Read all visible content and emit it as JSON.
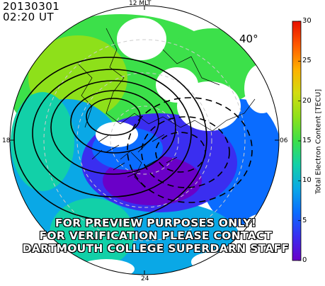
{
  "header": {
    "date": "20130301",
    "time": "02:20 UT"
  },
  "map": {
    "mlt_labels": {
      "top": "12 MLT",
      "left": "18",
      "right": "06",
      "bottom": "24"
    },
    "latitude_label": "40°",
    "watermark": [
      "FOR PREVIEW PURPOSES ONLY!",
      "FOR VERIFICATION PLEASE CONTACT",
      "DARTMOUTH COLLEGE SUPERDARN STAFF"
    ]
  },
  "colorbar": {
    "title": "Total Electron Content [TECU]",
    "min": 0,
    "max": 30,
    "ticks": [
      "0",
      "5",
      "10",
      "15",
      "20",
      "25",
      "30"
    ],
    "stops": [
      "#6a00c8",
      "#3a2ef0",
      "#0a6cff",
      "#0aa8e6",
      "#12d0a8",
      "#3ce04a",
      "#8ee01a",
      "#d2dc10",
      "#ffb000",
      "#ff5a00",
      "#e61000"
    ]
  }
}
